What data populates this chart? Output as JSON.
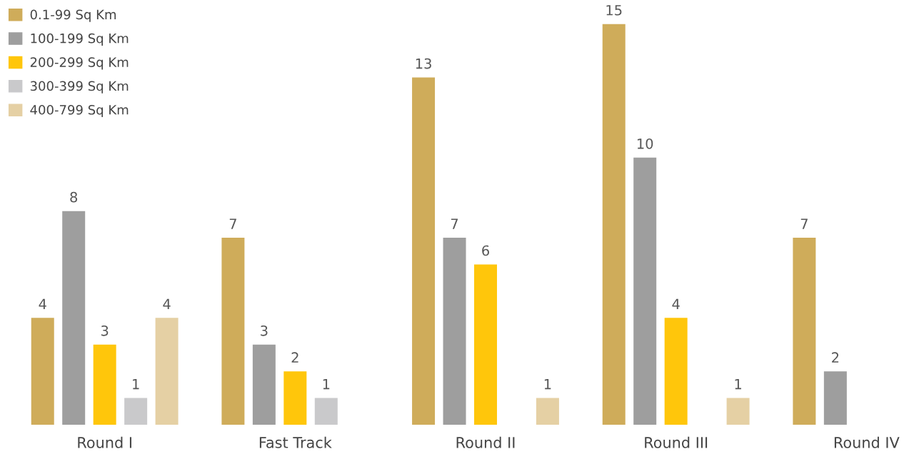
{
  "chart_data": {
    "type": "bar",
    "categories": [
      "Round I",
      "Fast Track",
      "Round II",
      "Round III",
      "Round IV"
    ],
    "series": [
      {
        "name": "0.1-99 Sq Km",
        "color": "#cfac5a",
        "values": [
          4,
          7,
          13,
          15,
          7
        ]
      },
      {
        "name": "100-199 Sq Km",
        "color": "#9e9e9e",
        "values": [
          8,
          3,
          7,
          10,
          2
        ]
      },
      {
        "name": "200-299 Sq Km",
        "color": "#ffc60b",
        "values": [
          3,
          2,
          6,
          4,
          null
        ]
      },
      {
        "name": "300-399 Sq Km",
        "color": "#c9c9cb",
        "values": [
          1,
          1,
          null,
          null,
          null
        ]
      },
      {
        "name": "400-799 Sq Km",
        "color": "#e5d0a4",
        "values": [
          4,
          null,
          1,
          1,
          null
        ]
      }
    ],
    "data_labels": true,
    "legend": "top left",
    "tick_labels": "x",
    "grid": false
  }
}
